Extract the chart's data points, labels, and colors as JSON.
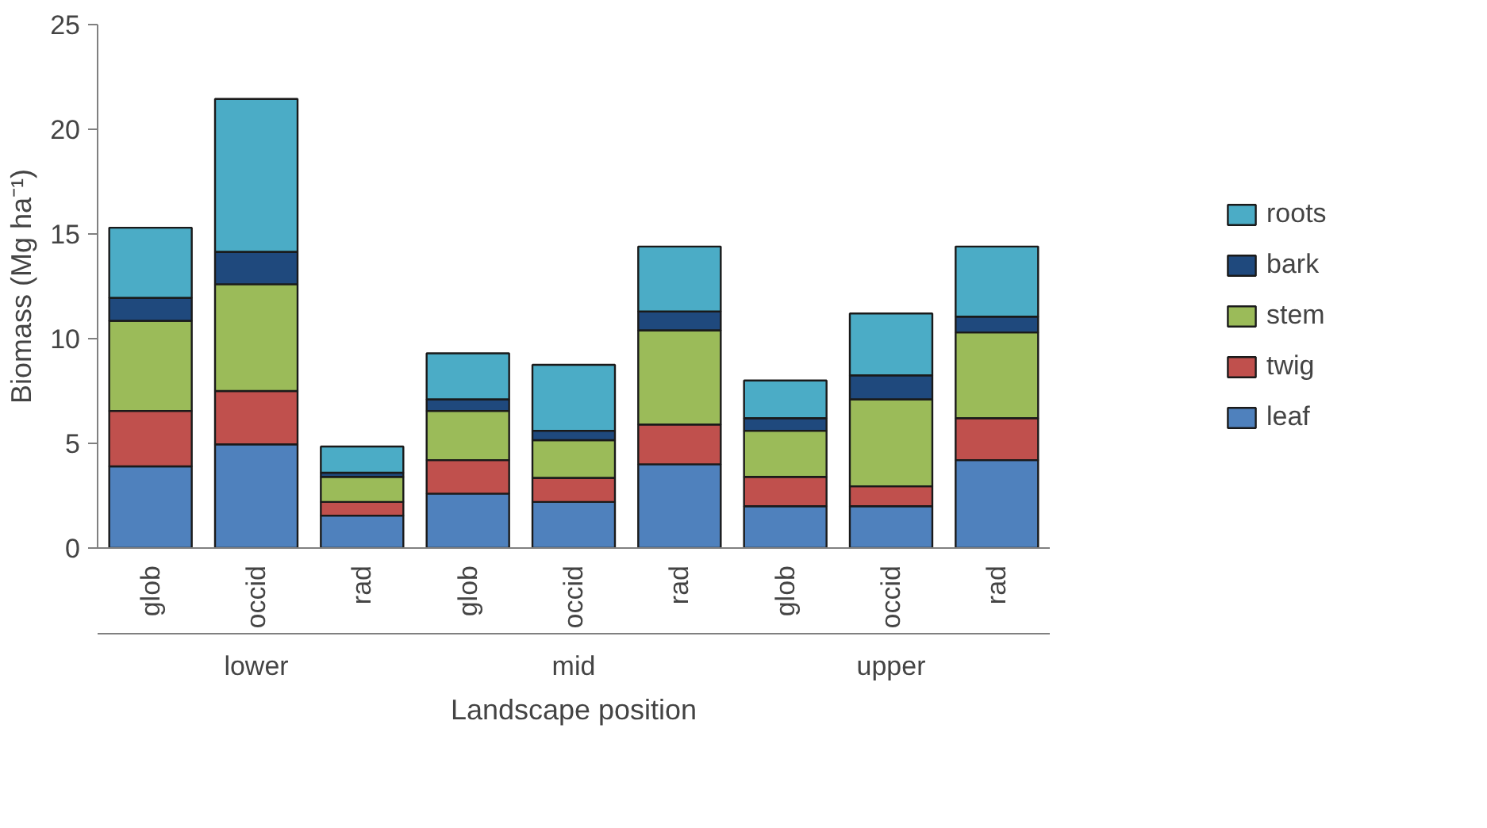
{
  "chart_data": {
    "type": "bar",
    "stacked": true,
    "xlabel": "Landscape position",
    "ylabel": "Biomass (Mg ha⁻¹)",
    "categories": [
      "glob",
      "occid",
      "rad",
      "glob",
      "occid",
      "rad",
      "glob",
      "occid",
      "rad"
    ],
    "annotations": [
      "lower",
      "mid",
      "upper"
    ],
    "series": [
      {
        "name": "leaf",
        "color": "#4f81bd",
        "values": [
          3.9,
          4.95,
          1.55,
          2.6,
          2.2,
          4.0,
          2.0,
          2.0,
          4.2
        ]
      },
      {
        "name": "twig",
        "color": "#c0504d",
        "values": [
          2.65,
          2.55,
          0.65,
          1.6,
          1.15,
          1.9,
          1.4,
          0.95,
          2.0
        ]
      },
      {
        "name": "stem",
        "color": "#9bbb59",
        "values": [
          4.3,
          5.1,
          1.2,
          2.35,
          1.8,
          4.5,
          2.2,
          4.15,
          4.1
        ]
      },
      {
        "name": "bark",
        "color": "#1f497d",
        "values": [
          1.1,
          1.55,
          0.2,
          0.55,
          0.45,
          0.9,
          0.6,
          1.15,
          0.75
        ]
      },
      {
        "name": "roots",
        "color": "#4bacc6",
        "values": [
          3.35,
          7.3,
          1.25,
          2.2,
          3.15,
          3.1,
          1.8,
          2.95,
          3.35
        ]
      }
    ],
    "ylim": [
      0,
      25
    ],
    "yticks": [
      0,
      5,
      10,
      15,
      20,
      25
    ],
    "grid": false,
    "legend": "right"
  }
}
